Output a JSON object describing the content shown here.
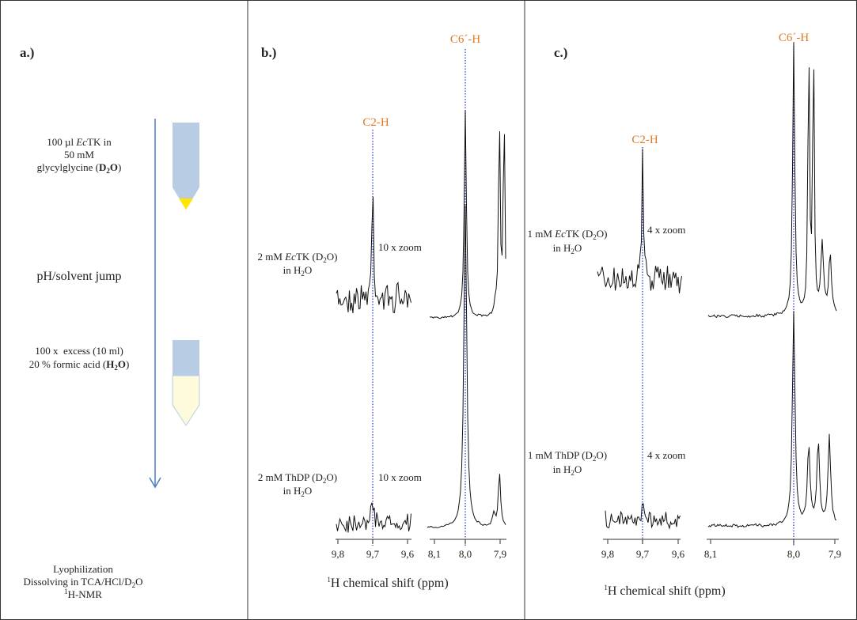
{
  "panels": [
    {
      "label": "a.)",
      "top_sample": [
        [
          "100 µl ",
          "Ec",
          "TK in"
        ],
        [
          "50 mM"
        ],
        [
          "glycylglycine (",
          "D",
          "2",
          "O",
          ")"
        ]
      ],
      "step": "pH/solvent jump",
      "bottom_sample": [
        [
          "100 x  excess (10 ml)"
        ],
        [
          "20 % formic acid (",
          "H",
          "2",
          "O",
          ")"
        ]
      ],
      "final": [
        [
          "Lyophilization"
        ],
        [
          "Dissolving in TCA/HCl/D",
          "2",
          "O"
        ],
        [
          "1",
          "H-NMR"
        ]
      ]
    },
    {
      "label": "b.)",
      "peaks": [
        "C6´-H",
        "C2-H"
      ],
      "spectra": [
        {
          "sample": [
            [
              "2 mM ",
              "Ec",
              "TK (D",
              "2",
              "O)"
            ],
            [
              "in H",
              "2",
              "O"
            ]
          ],
          "zoom": "10 x zoom"
        },
        {
          "sample": [
            [
              "2 mM ThDP (D",
              "2",
              "O)"
            ],
            [
              "in H",
              "2",
              "O"
            ]
          ],
          "zoom": "10 x zoom"
        }
      ],
      "ticks": [
        "9,8",
        "9,7",
        "9,6",
        "8,1",
        "8,0",
        "7,9"
      ],
      "axis_title": [
        "1",
        "H chemical shift (ppm)"
      ]
    },
    {
      "label": "c.)",
      "peaks": [
        "C6´-H",
        "C2-H"
      ],
      "spectra": [
        {
          "sample": [
            [
              "1 mM ",
              "Ec",
              "TK (D",
              "2",
              "O)"
            ],
            [
              "in H",
              "2",
              "O"
            ]
          ],
          "zoom": "4 x zoom"
        },
        {
          "sample": [
            [
              "1 mM ThDP (D",
              "2",
              "O)"
            ],
            [
              "in H",
              "2",
              "O"
            ]
          ],
          "zoom": "4 x zoom"
        }
      ],
      "ticks": [
        "9,8",
        "9,7",
        "9,6",
        "8,1",
        "8,0",
        "7,9"
      ],
      "axis_title": [
        "1",
        "H chemical shift (ppm)"
      ]
    }
  ]
}
